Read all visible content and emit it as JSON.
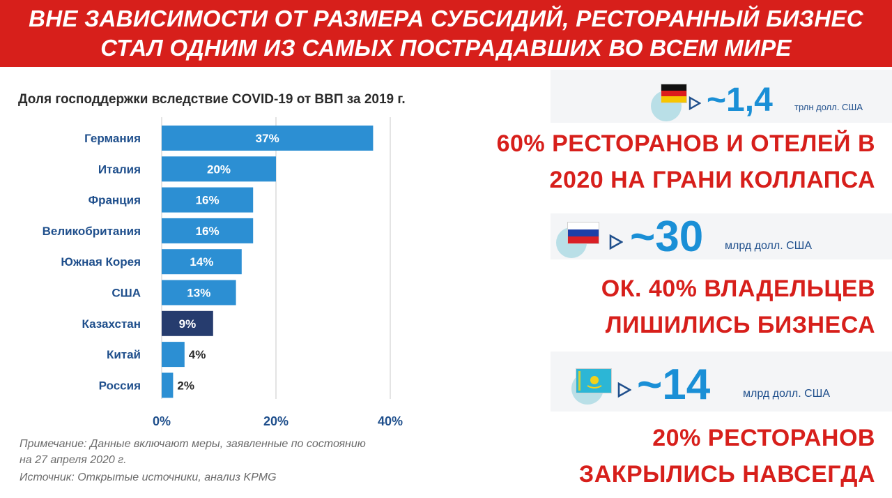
{
  "banner": {
    "line1": "ВНЕ ЗАВИСИМОСТИ ОТ РАЗМЕРА СУБСИДИЙ, РЕСТОРАННЫЙ БИЗНЕС",
    "line2": "СТАЛ ОДНИМ ИЗ САМЫХ ПОСТРАДАВШИХ ВО ВСЕМ МИРЕ"
  },
  "chart_data": {
    "type": "bar",
    "orientation": "horizontal",
    "title": "Доля господдержки вследствие COVID-19 от ВВП за 2019 г.",
    "categories": [
      "Германия",
      "Италия",
      "Франция",
      "Великобритания",
      "Южная Корея",
      "США",
      "Казахстан",
      "Китай",
      "Россия"
    ],
    "values": [
      37,
      20,
      16,
      16,
      14,
      13,
      9,
      4,
      2
    ],
    "data_labels": [
      "37%",
      "20%",
      "16%",
      "16%",
      "14%",
      "13%",
      "9%",
      "4%",
      "2%"
    ],
    "highlight": "Казахстан",
    "xlim": [
      0,
      40
    ],
    "xticks": [
      0,
      20,
      40
    ],
    "xtick_labels": [
      "0%",
      "20%",
      "40%"
    ],
    "colors": {
      "bar": "#2c8fd3",
      "highlight": "#263c6e",
      "label_inside": "#ffffff",
      "label_outside": "#2b2b2b"
    },
    "grid": true
  },
  "notes": {
    "line1": "Примечание: Данные включают меры, заявленные по состоянию",
    "line2": "на 27 апреля 2020 г.",
    "line3": "Источник: Открытые источники, анализ KPMG"
  },
  "panels": [
    {
      "flag_icon": "germany-flag-icon",
      "amount": "~1,4",
      "unit": "трлн долл. США",
      "stat_line1": "60% РЕСТОРАНОВ И ОТЕЛЕЙ В",
      "stat_line2": "2020 НА ГРАНИ КОЛЛАПСА"
    },
    {
      "flag_icon": "russia-flag-icon",
      "amount": "~30",
      "unit": "млрд долл. США",
      "stat_line1": "ОК. 40% ВЛАДЕЛЬЦЕВ",
      "stat_line2": "ЛИШИЛИСЬ БИЗНЕСА"
    },
    {
      "flag_icon": "kazakhstan-flag-icon",
      "amount": "~14",
      "unit": "млрд долл. США",
      "stat_line1": "20% РЕСТОРАНОВ",
      "stat_line2": "ЗАКРЫЛИСЬ НАВСЕГДА"
    }
  ],
  "colors": {
    "banner": "#d71f1b",
    "accent_blue": "#1a8fd6",
    "stat_red": "#d71f1b"
  }
}
